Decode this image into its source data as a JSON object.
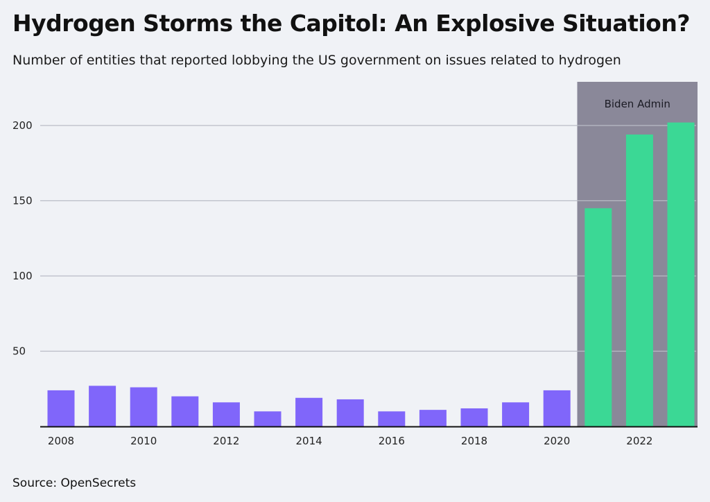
{
  "title": "Hydrogen Storms the Capitol: An Explosive Situation?",
  "subtitle": "Number of entities that reported lobbying the US government on issues related to hydrogen",
  "source": "Source: OpenSecrets",
  "colors": {
    "background": "#f0f2f6",
    "pre_biden_bar": "#8066fa",
    "biden_bar": "#3bd895",
    "highlight_band": "#8a8899",
    "gridline": "#b9bcc6",
    "axis": "#111111"
  },
  "chart_data": {
    "type": "bar",
    "title": "Hydrogen Storms the Capitol: An Explosive Situation?",
    "xlabel": "",
    "ylabel": "",
    "ylim": [
      0,
      220
    ],
    "yticks": [
      50,
      100,
      150,
      200
    ],
    "grid": true,
    "categories": [
      "2008",
      "2009",
      "2010",
      "2011",
      "2012",
      "2013",
      "2014",
      "2015",
      "2016",
      "2017",
      "2018",
      "2019",
      "2020",
      "2021",
      "2022",
      "2023"
    ],
    "xtick_labels": [
      "2008",
      "",
      "2010",
      "",
      "2012",
      "",
      "2014",
      "",
      "2016",
      "",
      "2018",
      "",
      "2020",
      "",
      "2022",
      ""
    ],
    "values": [
      24,
      27,
      26,
      20,
      16,
      10,
      19,
      18,
      10,
      11,
      12,
      16,
      24,
      145,
      194,
      202
    ],
    "highlight": {
      "label": "Biden Admin",
      "start_category": "2021",
      "end_category": "2023"
    }
  }
}
